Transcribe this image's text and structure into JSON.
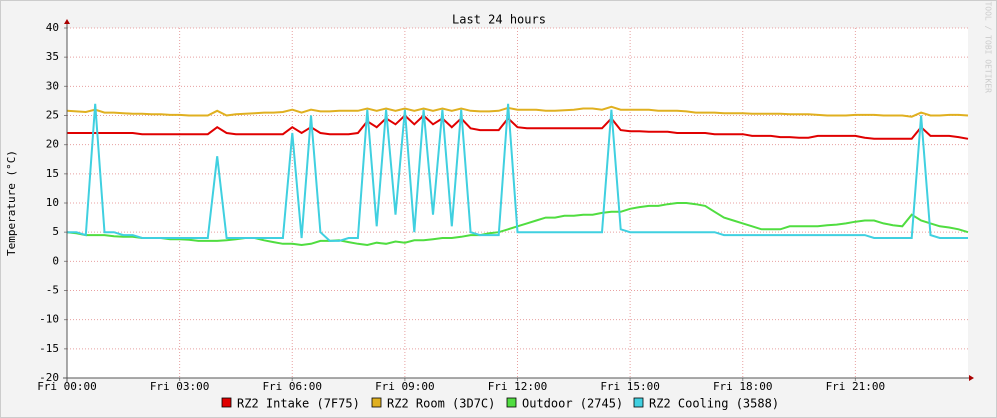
{
  "chart_data": {
    "type": "line",
    "title": "Last 24 hours",
    "y_label": "Temperature (°C)",
    "watermark": "RRDTOOL / TOBI OETIKER",
    "xlim": [
      0,
      24
    ],
    "xticks": [
      {
        "value": 0,
        "label": "Fri 00:00"
      },
      {
        "value": 3,
        "label": "Fri 03:00"
      },
      {
        "value": 6,
        "label": "Fri 06:00"
      },
      {
        "value": 9,
        "label": "Fri 09:00"
      },
      {
        "value": 12,
        "label": "Fri 12:00"
      },
      {
        "value": 15,
        "label": "Fri 15:00"
      },
      {
        "value": 18,
        "label": "Fri 18:00"
      },
      {
        "value": 21,
        "label": "Fri 21:00"
      }
    ],
    "ylim": [
      -20,
      40
    ],
    "yticks": [
      -20,
      -15,
      -10,
      -5,
      0,
      5,
      10,
      15,
      20,
      25,
      30,
      35,
      40
    ],
    "grid": true,
    "x": [
      0,
      0.25,
      0.5,
      0.75,
      1,
      1.25,
      1.5,
      1.75,
      2,
      2.25,
      2.5,
      2.75,
      3,
      3.25,
      3.5,
      3.75,
      4,
      4.25,
      4.5,
      4.75,
      5,
      5.25,
      5.5,
      5.75,
      6,
      6.25,
      6.5,
      6.75,
      7,
      7.25,
      7.5,
      7.75,
      8,
      8.25,
      8.5,
      8.75,
      9,
      9.25,
      9.5,
      9.75,
      10,
      10.25,
      10.5,
      10.75,
      11,
      11.25,
      11.5,
      11.75,
      12,
      12.25,
      12.5,
      12.75,
      13,
      13.25,
      13.5,
      13.75,
      14,
      14.25,
      14.5,
      14.75,
      15,
      15.25,
      15.5,
      15.75,
      16,
      16.25,
      16.5,
      16.75,
      17,
      17.25,
      17.5,
      17.75,
      18,
      18.25,
      18.5,
      18.75,
      19,
      19.25,
      19.5,
      19.75,
      20,
      20.25,
      20.5,
      20.75,
      21,
      21.25,
      21.5,
      21.75,
      22,
      22.25,
      22.5,
      22.75,
      23,
      23.25,
      23.5,
      23.75,
      24
    ],
    "series": [
      {
        "name": "RZ2 Intake (7F75)",
        "color": "#e00000",
        "values": [
          22,
          22,
          22,
          22,
          22,
          22,
          22,
          22,
          21.8,
          21.8,
          21.8,
          21.8,
          21.8,
          21.8,
          21.8,
          21.8,
          23,
          22,
          21.8,
          21.8,
          21.8,
          21.8,
          21.8,
          21.8,
          23,
          22,
          23,
          22,
          21.8,
          21.8,
          21.8,
          22,
          24,
          23,
          24.5,
          23.5,
          25,
          23.5,
          25,
          23.5,
          24.5,
          23,
          24.5,
          22.8,
          22.5,
          22.5,
          22.5,
          24.5,
          23,
          22.8,
          22.8,
          22.8,
          22.8,
          22.8,
          22.8,
          22.8,
          22.8,
          22.8,
          24.5,
          22.5,
          22.3,
          22.3,
          22.2,
          22.2,
          22.2,
          22,
          22,
          22,
          22,
          21.8,
          21.8,
          21.8,
          21.8,
          21.5,
          21.5,
          21.5,
          21.3,
          21.3,
          21.2,
          21.2,
          21.5,
          21.5,
          21.5,
          21.5,
          21.5,
          21.2,
          21,
          21,
          21,
          21,
          21,
          23,
          21.5,
          21.5,
          21.5,
          21.3,
          21
        ]
      },
      {
        "name": "RZ2 Room (3D7C)",
        "color": "#e0b020",
        "values": [
          25.8,
          25.7,
          25.6,
          26,
          25.5,
          25.5,
          25.4,
          25.3,
          25.3,
          25.2,
          25.2,
          25.1,
          25.1,
          25,
          25,
          25,
          25.8,
          25,
          25.2,
          25.3,
          25.4,
          25.5,
          25.5,
          25.6,
          26,
          25.5,
          26,
          25.7,
          25.7,
          25.8,
          25.8,
          25.8,
          26.2,
          25.8,
          26.2,
          25.8,
          26.2,
          25.8,
          26.2,
          25.8,
          26.2,
          25.8,
          26.2,
          25.8,
          25.7,
          25.7,
          25.8,
          26.3,
          26,
          26,
          26,
          25.8,
          25.8,
          25.9,
          26,
          26.2,
          26.2,
          26,
          26.5,
          26,
          26,
          26,
          26,
          25.8,
          25.8,
          25.8,
          25.7,
          25.5,
          25.5,
          25.5,
          25.4,
          25.4,
          25.4,
          25.3,
          25.3,
          25.3,
          25.3,
          25.2,
          25.2,
          25.2,
          25.1,
          25,
          25,
          25,
          25.1,
          25.1,
          25.1,
          25,
          25,
          25,
          24.8,
          25.5,
          25,
          25,
          25.1,
          25.1,
          25
        ]
      },
      {
        "name": "Outdoor (2745)",
        "color": "#50dd40",
        "values": [
          5,
          4.8,
          4.5,
          4.5,
          4.5,
          4.3,
          4.2,
          4.2,
          4,
          4,
          4,
          3.8,
          3.8,
          3.7,
          3.5,
          3.5,
          3.5,
          3.6,
          3.8,
          4,
          4,
          3.6,
          3.3,
          3,
          3,
          2.8,
          3,
          3.5,
          3.5,
          3.6,
          3.3,
          3,
          2.8,
          3.2,
          3,
          3.4,
          3.2,
          3.6,
          3.6,
          3.8,
          4,
          4,
          4.2,
          4.5,
          4.5,
          4.8,
          5,
          5.5,
          6,
          6.5,
          7,
          7.5,
          7.5,
          7.8,
          7.8,
          8,
          8,
          8.3,
          8.5,
          8.5,
          9,
          9.3,
          9.5,
          9.5,
          9.8,
          10,
          10,
          9.8,
          9.5,
          8.5,
          7.5,
          7,
          6.5,
          6,
          5.5,
          5.5,
          5.5,
          6,
          6,
          6,
          6,
          6.2,
          6.3,
          6.5,
          6.8,
          7,
          7,
          6.5,
          6.2,
          6,
          8,
          7,
          6.5,
          6,
          5.8,
          5.5,
          5
        ]
      },
      {
        "name": "RZ2 Cooling (3588)",
        "color": "#40d0e0",
        "values": [
          5,
          5,
          4.5,
          27,
          5,
          5,
          4.5,
          4.5,
          4,
          4,
          4,
          4,
          4,
          4,
          4,
          4,
          18,
          4,
          4,
          4,
          4,
          4,
          4,
          4,
          22,
          4,
          25,
          5,
          3.5,
          3.5,
          4,
          4,
          26,
          6,
          26,
          8,
          26,
          5,
          26,
          8,
          26,
          6,
          26,
          5,
          4.5,
          4.5,
          4.5,
          27,
          5,
          5,
          5,
          5,
          5,
          5,
          5,
          5,
          5,
          5,
          26,
          5.5,
          5,
          5,
          5,
          5,
          5,
          5,
          5,
          5,
          5,
          5,
          4.5,
          4.5,
          4.5,
          4.5,
          4.5,
          4.5,
          4.5,
          4.5,
          4.5,
          4.5,
          4.5,
          4.5,
          4.5,
          4.5,
          4.5,
          4.5,
          4,
          4,
          4,
          4,
          4,
          25,
          4.5,
          4,
          4,
          4,
          4
        ]
      }
    ]
  }
}
